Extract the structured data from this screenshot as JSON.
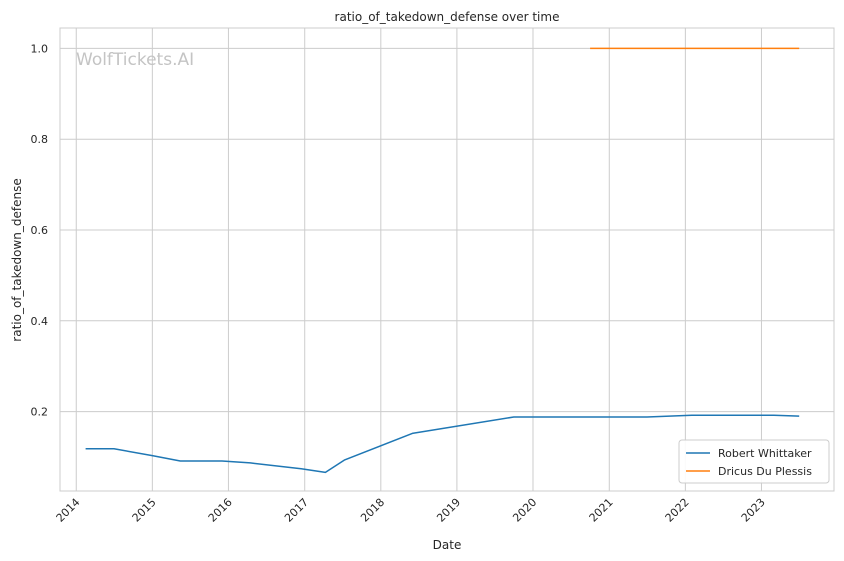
{
  "chart_data": {
    "type": "line",
    "title": "ratio_of_takedown_defense over time",
    "xlabel": "Date",
    "ylabel": "ratio_of_takedown_defense",
    "x_ticks": [
      "2014",
      "2015",
      "2016",
      "2017",
      "2018",
      "2019",
      "2020",
      "2021",
      "2022",
      "2023"
    ],
    "y_ticks": [
      "0.2",
      "0.4",
      "0.6",
      "0.8",
      "1.0"
    ],
    "xlim": [
      "2013-10-15",
      "2023-12-15"
    ],
    "ylim": [
      0.025,
      1.045
    ],
    "grid": true,
    "legend_position": "lower-right",
    "watermark": "WolfTickets.AI",
    "series": [
      {
        "name": "Robert Whittaker",
        "color": "#1f77b4",
        "points": [
          {
            "x": "2014-02-15",
            "y": 0.118
          },
          {
            "x": "2014-07-01",
            "y": 0.118
          },
          {
            "x": "2015-01-01",
            "y": 0.103
          },
          {
            "x": "2015-05-15",
            "y": 0.091
          },
          {
            "x": "2015-12-01",
            "y": 0.091
          },
          {
            "x": "2016-04-15",
            "y": 0.087
          },
          {
            "x": "2016-12-15",
            "y": 0.074
          },
          {
            "x": "2017-04-10",
            "y": 0.066
          },
          {
            "x": "2017-07-10",
            "y": 0.093
          },
          {
            "x": "2018-06-01",
            "y": 0.152
          },
          {
            "x": "2019-10-01",
            "y": 0.188
          },
          {
            "x": "2021-07-01",
            "y": 0.188
          },
          {
            "x": "2022-02-01",
            "y": 0.192
          },
          {
            "x": "2023-03-01",
            "y": 0.192
          },
          {
            "x": "2023-07-01",
            "y": 0.19
          }
        ]
      },
      {
        "name": "Dricus Du Plessis",
        "color": "#ff7f0e",
        "points": [
          {
            "x": "2020-10-01",
            "y": 1.0
          },
          {
            "x": "2023-07-01",
            "y": 1.0
          }
        ]
      }
    ]
  }
}
